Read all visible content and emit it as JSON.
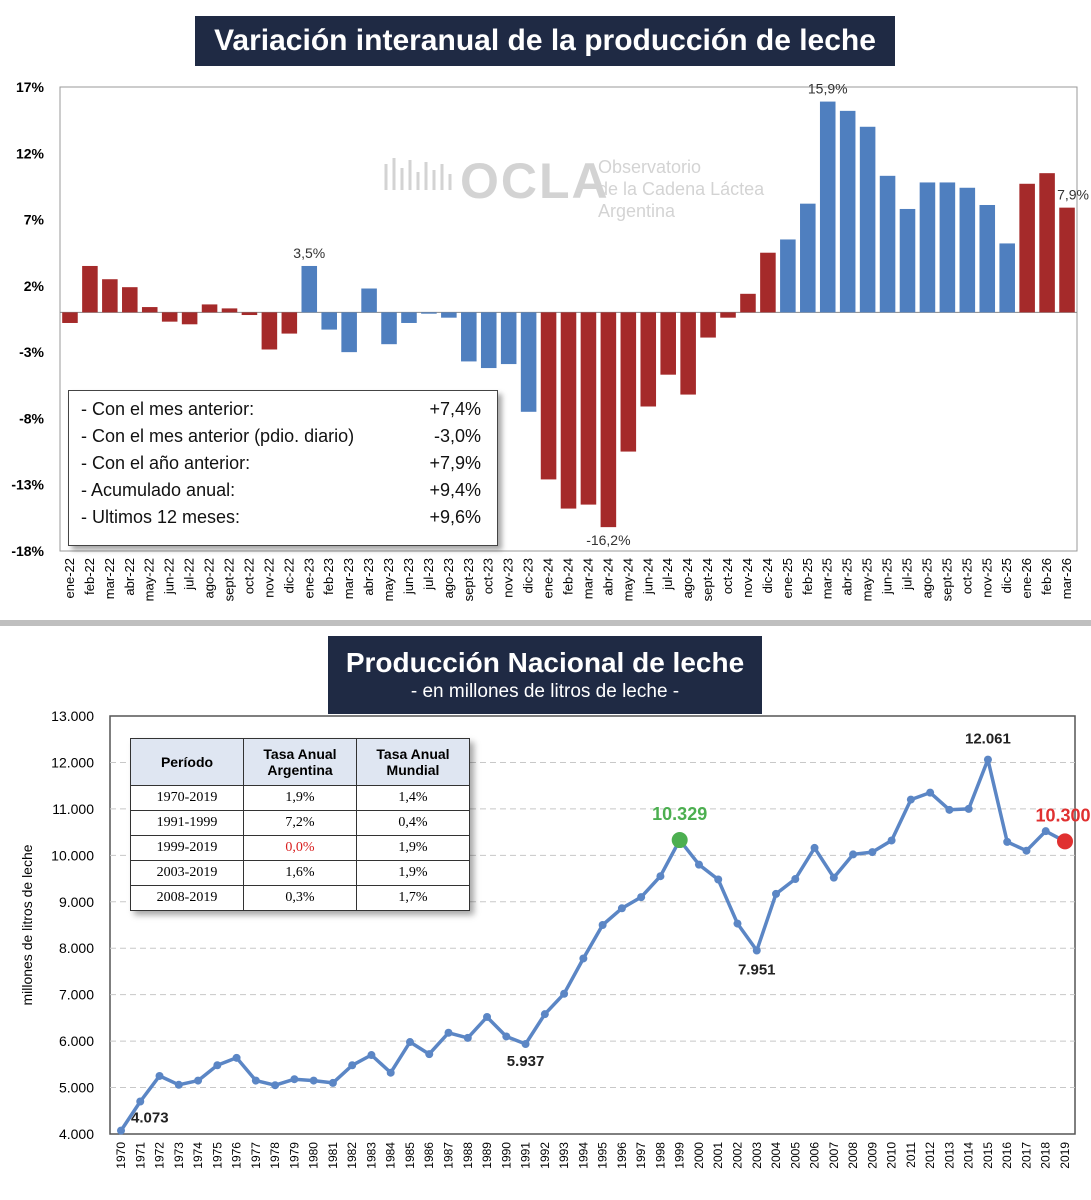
{
  "colors": {
    "bar_red": "#a52a2a",
    "bar_blue": "#4f7fbf",
    "line_blue": "#5b86c5",
    "highlight_green": "#4caf50",
    "highlight_red": "#e03030",
    "title_bg": "#1f2a44"
  },
  "top_chart": {
    "title": "Variación interanual de la producción de leche",
    "watermark": {
      "brand": "OCLA",
      "line1": "Observatorio",
      "line2": "de la Cadena Láctea",
      "line3": "Argentina"
    },
    "summary": [
      {
        "label": "- Con el mes anterior:",
        "value": "+7,4%"
      },
      {
        "label": "- Con el mes anterior (pdio. diario)",
        "value": "-3,0%"
      },
      {
        "label": "- Con el año anterior:",
        "value": "+7,9%"
      },
      {
        "label": "- Acumulado anual:",
        "value": "+9,4%"
      },
      {
        "label": "- Ultimos 12 meses:",
        "value": "+9,6%"
      }
    ]
  },
  "bottom_chart": {
    "title": "Producción Nacional de leche",
    "subtitle": "- en millones de litros de leche -",
    "table": {
      "headers": [
        "Período",
        "Tasa Anual Argentina",
        "Tasa Anual Mundial"
      ],
      "rows": [
        [
          "1970-2019",
          "1,9%",
          "1,4%"
        ],
        [
          "1991-1999",
          "7,2%",
          "0,4%"
        ],
        [
          "1999-2019",
          "0,0%",
          "1,9%"
        ],
        [
          "2003-2019",
          "1,6%",
          "1,9%"
        ],
        [
          "2008-2019",
          "0,3%",
          "1,7%"
        ]
      ]
    }
  },
  "chart_data": [
    {
      "type": "bar",
      "title": "Variación interanual de la producción de leche",
      "ylim": [
        -18,
        17
      ],
      "yticks": [
        "17%",
        "12%",
        "7%",
        "2%",
        "-3%",
        "-8%",
        "-13%",
        "-18%"
      ],
      "categories": [
        "ene-22",
        "feb-22",
        "mar-22",
        "abr-22",
        "may-22",
        "jun-22",
        "jul-22",
        "ago-22",
        "sept-22",
        "oct-22",
        "nov-22",
        "dic-22",
        "ene-23",
        "feb-23",
        "mar-23",
        "abr-23",
        "may-23",
        "jun-23",
        "jul-23",
        "ago-23",
        "sept-23",
        "oct-23",
        "nov-23",
        "dic-23",
        "ene-24",
        "feb-24",
        "mar-24",
        "abr-24",
        "may-24",
        "jun-24",
        "jul-24",
        "ago-24",
        "sept-24",
        "oct-24",
        "nov-24",
        "dic-24",
        "ene-25",
        "feb-25",
        "mar-25",
        "abr-25",
        "may-25",
        "jun-25",
        "jul-25",
        "ago-25",
        "sept-25",
        "oct-25",
        "nov-25",
        "dic-25",
        "ene-26",
        "feb-26",
        "mar-26"
      ],
      "values": [
        -0.8,
        3.5,
        2.5,
        1.9,
        0.4,
        -0.7,
        -0.9,
        0.6,
        0.3,
        -0.2,
        -2.8,
        -1.6,
        3.5,
        -1.3,
        -3.0,
        1.8,
        -2.4,
        -0.8,
        -0.1,
        -0.4,
        -3.7,
        -4.2,
        -3.9,
        -7.5,
        -12.6,
        -14.8,
        -14.5,
        -16.2,
        -10.5,
        -7.1,
        -4.7,
        -6.2,
        -1.9,
        -0.4,
        1.4,
        4.5,
        5.5,
        8.2,
        15.9,
        15.2,
        14.0,
        10.3,
        7.8,
        9.8,
        9.8,
        9.4,
        8.1,
        5.2,
        9.7,
        10.5,
        7.9
      ],
      "groups": [
        "red",
        "red",
        "red",
        "red",
        "red",
        "red",
        "red",
        "red",
        "red",
        "red",
        "red",
        "red",
        "blue",
        "blue",
        "blue",
        "blue",
        "blue",
        "blue",
        "blue",
        "blue",
        "blue",
        "blue",
        "blue",
        "blue",
        "red",
        "red",
        "red",
        "red",
        "red",
        "red",
        "red",
        "red",
        "red",
        "red",
        "red",
        "red",
        "blue",
        "blue",
        "blue",
        "blue",
        "blue",
        "blue",
        "blue",
        "blue",
        "blue",
        "blue",
        "blue",
        "blue",
        "red",
        "red",
        "red"
      ],
      "annotations": [
        {
          "category": "ene-23",
          "text": "3,5%"
        },
        {
          "category": "mar-25",
          "text": "15,9%"
        },
        {
          "category": "abr-24",
          "text": "-16,2%"
        },
        {
          "category": "mar-26",
          "text": "7,9%"
        }
      ]
    },
    {
      "type": "line",
      "title": "Producción Nacional de leche",
      "subtitle": "- en millones de litros de leche -",
      "ylabel": "millones de litros de leche",
      "ylim": [
        4000,
        13000
      ],
      "yticks": [
        "13.000",
        "12.000",
        "11.000",
        "10.000",
        "9.000",
        "8.000",
        "7.000",
        "6.000",
        "5.000",
        "4.000"
      ],
      "x": [
        1970,
        1971,
        1972,
        1973,
        1974,
        1975,
        1976,
        1977,
        1978,
        1979,
        1980,
        1981,
        1982,
        1983,
        1984,
        1985,
        1986,
        1987,
        1988,
        1989,
        1990,
        1991,
        1992,
        1993,
        1994,
        1995,
        1996,
        1997,
        1998,
        1999,
        2000,
        2001,
        2002,
        2003,
        2004,
        2005,
        2006,
        2007,
        2008,
        2009,
        2010,
        2011,
        2012,
        2013,
        2014,
        2015,
        2016,
        2017,
        2018,
        2019
      ],
      "values": [
        4073,
        4700,
        5250,
        5060,
        5150,
        5480,
        5640,
        5150,
        5050,
        5180,
        5150,
        5100,
        5480,
        5700,
        5320,
        5980,
        5720,
        6180,
        6070,
        6520,
        6100,
        5937,
        6580,
        7020,
        7780,
        8500,
        8860,
        9100,
        9550,
        10329,
        9800,
        9480,
        8530,
        7951,
        9170,
        9490,
        10160,
        9520,
        10020,
        10070,
        10320,
        11200,
        11350,
        10980,
        11000,
        12061,
        10290,
        10100,
        10520,
        10300
      ],
      "annotations": [
        {
          "x": 1970,
          "text": "4.073"
        },
        {
          "x": 1991,
          "text": "5.937"
        },
        {
          "x": 1999,
          "text": "10.329"
        },
        {
          "x": 2003,
          "text": "7.951"
        },
        {
          "x": 2015,
          "text": "12.061"
        },
        {
          "x": 2019,
          "text": "10.300"
        }
      ],
      "grid": true
    }
  ]
}
